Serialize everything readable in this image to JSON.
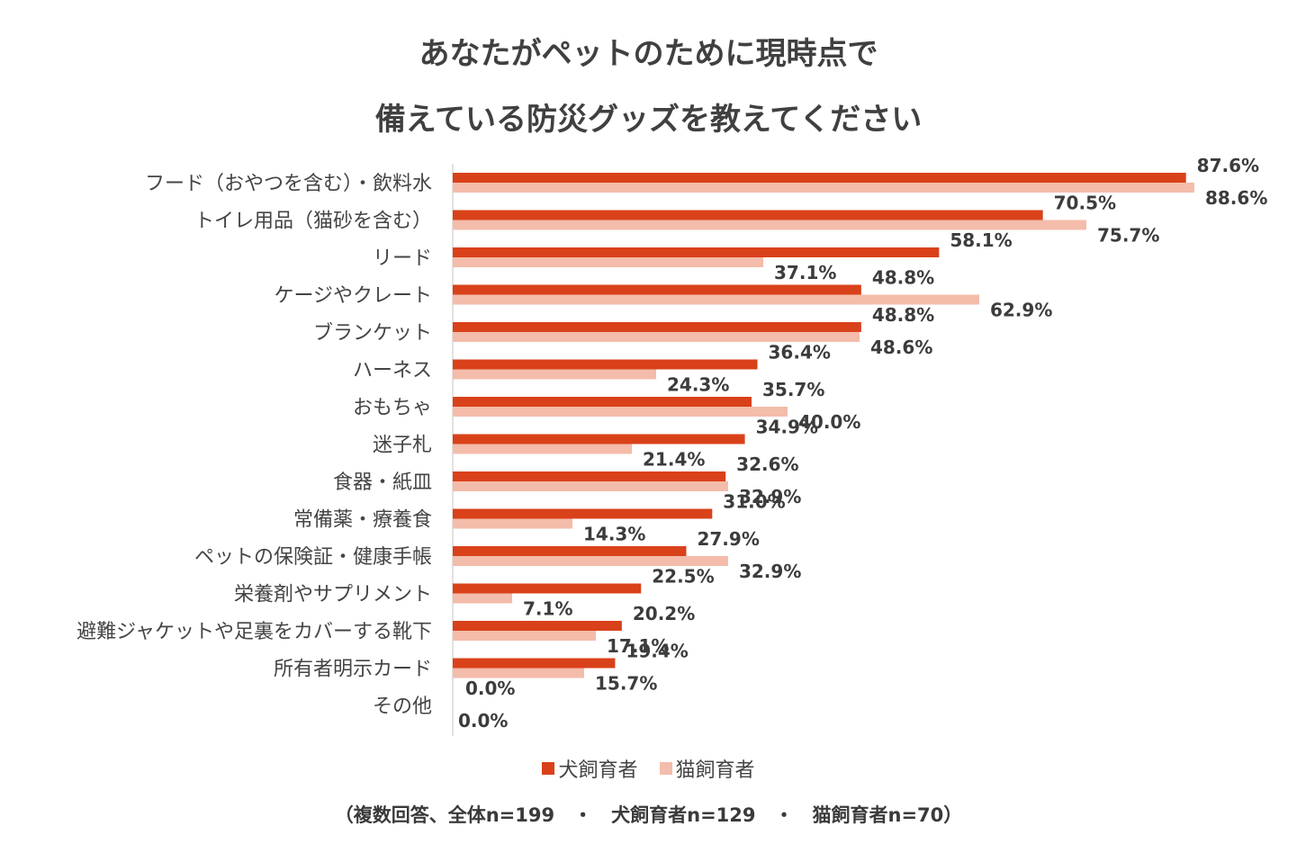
{
  "title_line1": "あなたがペットのために現時点で",
  "title_line2": "備えている防災グッズを教えてください",
  "footnote": "（複数回答、全体n=199　・　犬飼育者n=129　・　猫飼育者n=70）",
  "colors": {
    "dog": "#d9411a",
    "cat": "#f4bcaa",
    "axis": "#d9d9d9"
  },
  "chart_data": {
    "type": "bar",
    "orientation": "horizontal",
    "title": "あなたがペットのために現時点で 備えている防災グッズを教えてください",
    "categories": [
      "フード（おやつを含む）・飲料水",
      "トイレ用品（猫砂を含む）",
      "リード",
      "ケージやクレート",
      "ブランケット",
      "ハーネス",
      "おもちゃ",
      "迷子札",
      "食器・紙皿",
      "常備薬・療養食",
      "ペットの保険証・健康手帳",
      "栄養剤やサプリメント",
      "避難ジャケットや足裏をカバーする靴下",
      "所有者明示カード",
      "その他"
    ],
    "series": [
      {
        "name": "犬飼育者",
        "values": [
          87.6,
          70.5,
          58.1,
          48.8,
          48.8,
          36.4,
          35.7,
          34.9,
          32.6,
          31.0,
          27.9,
          22.5,
          20.2,
          19.4,
          0.0
        ]
      },
      {
        "name": "猫飼育者",
        "values": [
          88.6,
          75.7,
          37.1,
          62.9,
          48.6,
          24.3,
          40.0,
          21.4,
          32.9,
          14.3,
          32.9,
          7.1,
          17.1,
          15.7,
          0.0
        ]
      }
    ],
    "value_labels": {
      "dog": [
        "87.6%",
        "70.5%",
        "58.1%",
        "48.8%",
        "48.8%",
        "36.4%",
        "35.7%",
        "34.9%",
        "32.6%",
        "31.0%",
        "27.9%",
        "22.5%",
        "20.2%",
        "19.4%",
        "0.0%"
      ],
      "cat": [
        "88.6%",
        "75.7%",
        "37.1%",
        "62.9%",
        "48.6%",
        "24.3%",
        "40.0%",
        "21.4%",
        "32.9%",
        "14.3%",
        "32.9%",
        "7.1%",
        "17.1%",
        "15.7%",
        "0.0%"
      ]
    },
    "xlim": [
      0,
      100
    ],
    "grid": false,
    "legend": "bottom"
  }
}
